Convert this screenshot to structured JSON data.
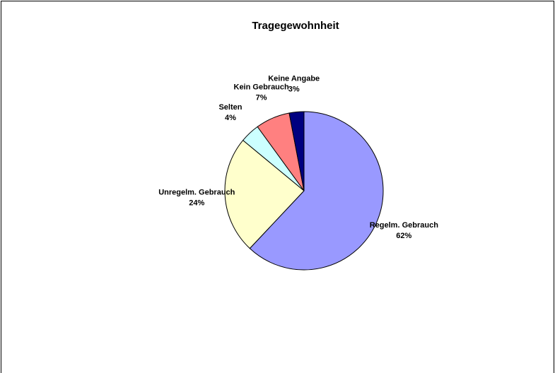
{
  "chart_data": {
    "type": "pie",
    "title": "Tragegewohnheit",
    "categories": [
      "Regelm. Gebrauch",
      "Unregelm. Gebrauch",
      "Selten",
      "Kein Gebrauch",
      "Keine Angabe"
    ],
    "values": [
      62,
      24,
      4,
      7,
      3
    ],
    "value_labels": [
      "62%",
      "24%",
      "4%",
      "7%",
      "3%"
    ],
    "colors": [
      "#9999ff",
      "#ffffcc",
      "#ccffff",
      "#ff8080",
      "#000080"
    ]
  }
}
